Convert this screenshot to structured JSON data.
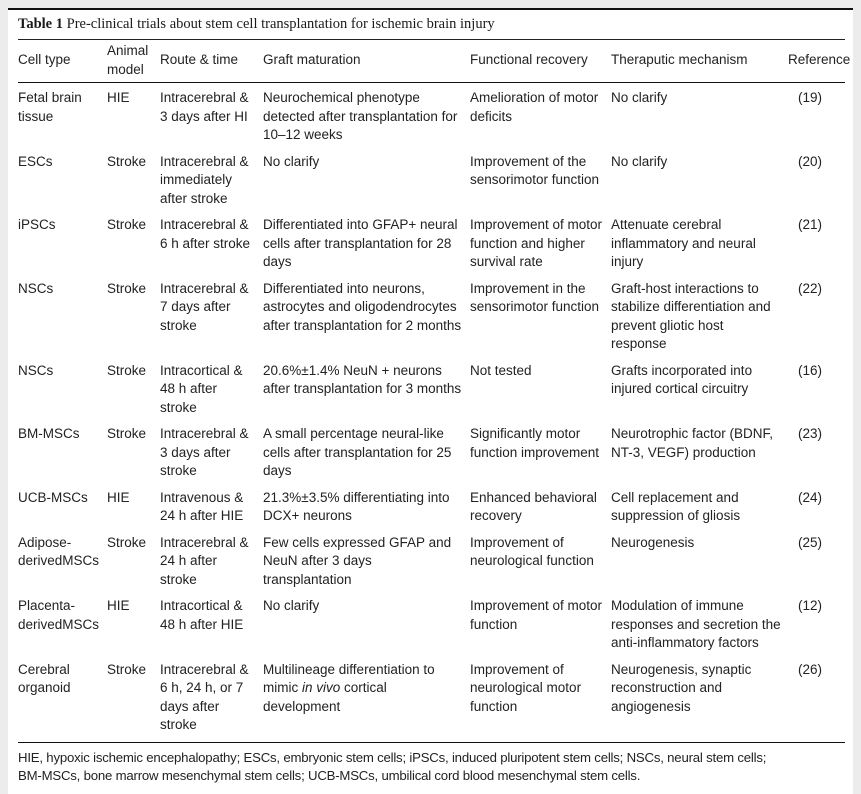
{
  "caption": {
    "label": "Table 1",
    "text": " Pre-clinical trials about stem cell transplantation for ischemic brain injury"
  },
  "table": {
    "columns": [
      "Cell type",
      "Animal model",
      "Route & time",
      "Graft maturation",
      "Functional recovery",
      "Theraputic mechanism",
      "Reference"
    ],
    "column_keys": [
      "cell-type",
      "animal-model",
      "route-time",
      "graft-maturation",
      "functional-recovery",
      "theraputic-mechanism",
      "reference"
    ],
    "rows": [
      {
        "cells": [
          "Fetal brain tissue",
          "HIE",
          "Intracerebral & 3 days after HI",
          "Neurochemical phenotype detected after transplantation for 10–12 weeks",
          "Amelioration of motor deficits",
          "No clarify",
          "(19)"
        ]
      },
      {
        "cells": [
          "ESCs",
          "Stroke",
          "Intracerebral & immediately after stroke",
          "No clarify",
          "Improvement of the sensorimotor function",
          "No clarify",
          "(20)"
        ]
      },
      {
        "cells": [
          "iPSCs",
          "Stroke",
          "Intracerebral & 6 h after stroke",
          "Differentiated into GFAP+ neural cells after transplantation for 28 days",
          "Improvement of motor function and higher survival rate",
          "Attenuate cerebral inflammatory and neural injury",
          "(21)"
        ]
      },
      {
        "cells": [
          "NSCs",
          "Stroke",
          "Intracerebral & 7 days after stroke",
          "Differentiated into neurons, astrocytes and oligodendrocytes after transplantation for 2 months",
          "Improvement in the sensorimotor function",
          "Graft-host interactions to stabilize differentiation and prevent gliotic host response",
          "(22)"
        ]
      },
      {
        "cells": [
          "NSCs",
          "Stroke",
          "Intracortical & 48 h after stroke",
          "20.6%±1.4% NeuN + neurons after transplantation for 3 months",
          "Not tested",
          "Grafts incorporated into injured cortical circuitry",
          "(16)"
        ]
      },
      {
        "cells": [
          "BM-MSCs",
          "Stroke",
          "Intracerebral & 3 days after stroke",
          "A small percentage neural-like cells after transplantation for 25 days",
          "Significantly motor function improvement",
          "Neurotrophic factor (BDNF, NT-3, VEGF) production",
          "(23)"
        ]
      },
      {
        "cells": [
          "UCB-MSCs",
          "HIE",
          "Intravenous & 24 h after HIE",
          "21.3%±3.5% differentiating into DCX+ neurons",
          "Enhanced behavioral recovery",
          "Cell replacement and suppression of gliosis",
          "(24)"
        ]
      },
      {
        "cells": [
          "Adipose-derivedMSCs",
          "Stroke",
          "Intracerebral & 24 h after stroke",
          "Few cells expressed GFAP and NeuN after 3 days transplantation",
          "Improvement of neurological function",
          "Neurogenesis",
          "(25)"
        ]
      },
      {
        "cells": [
          "Placenta-derivedMSCs",
          "HIE",
          "Intracortical & 48 h after HIE",
          "No clarify",
          "Improvement of motor function",
          "Modulation of immune responses and secretion the anti-inflammatory factors",
          "(12)"
        ]
      },
      {
        "cells": [
          "Cerebral organoid",
          "Stroke",
          "Intracerebral & 6 h, 24 h, or 7 days after stroke",
          [
            {
              "t": "Multilineage differentiation to mimic "
            },
            {
              "t": "in vivo",
              "i": true
            },
            {
              "t": " cortical development"
            }
          ],
          "Improvement of neurological motor function",
          "Neurogenesis, synaptic reconstruction and angiogenesis",
          "(26)"
        ]
      }
    ]
  },
  "footnote": {
    "lines": [
      "HIE, hypoxic ischemic encephalopathy; ESCs, embryonic stem cells; iPSCs, induced pluripotent stem cells; NSCs, neural stem cells;",
      "BM-MSCs, bone marrow mesenchymal stem cells; UCB-MSCs, umbilical cord blood mesenchymal stem cells."
    ]
  },
  "colors": {
    "page_background": "#ececec",
    "surface": "#ffffff",
    "text": "#222222",
    "rule": "#111111"
  }
}
